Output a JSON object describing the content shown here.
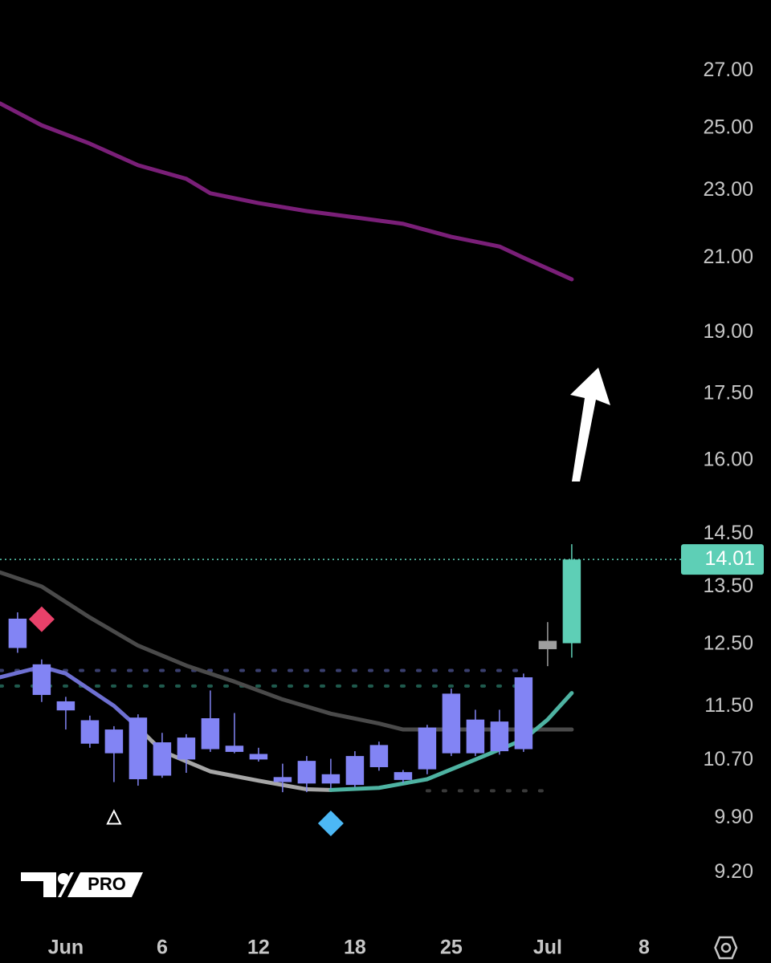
{
  "chart_data": {
    "type": "candlestick",
    "log_scale": true,
    "ylim": [
      8.6,
      29.7
    ],
    "xlim": [
      -0.73,
      27.27
    ],
    "yticks": [
      {
        "value": 27,
        "label": "27.00"
      },
      {
        "value": 25,
        "label": "25.00"
      },
      {
        "value": 23,
        "label": "23.00"
      },
      {
        "value": 21,
        "label": "21.00"
      },
      {
        "value": 19,
        "label": "19.00"
      },
      {
        "value": 17.5,
        "label": "17.50"
      },
      {
        "value": 16,
        "label": "16.00"
      },
      {
        "value": 14.5,
        "label": "14.50"
      },
      {
        "value": 13.5,
        "label": "13.50"
      },
      {
        "value": 12.5,
        "label": "12.50"
      },
      {
        "value": 11.5,
        "label": "11.50"
      },
      {
        "value": 10.7,
        "label": "10.70"
      },
      {
        "value": 9.9,
        "label": "9.90"
      },
      {
        "value": 9.2,
        "label": "9.20"
      }
    ],
    "xticks": [
      {
        "value": 2,
        "label": "Jun"
      },
      {
        "value": 6,
        "label": "6"
      },
      {
        "value": 10,
        "label": "12"
      },
      {
        "value": 14,
        "label": "18"
      },
      {
        "value": 18,
        "label": "25"
      },
      {
        "value": 22,
        "label": "Jul"
      },
      {
        "value": 26,
        "label": "8"
      }
    ],
    "candles": [
      {
        "x": 0,
        "open": 12.94,
        "high": 13.05,
        "low": 12.36,
        "close": 12.44,
        "color": "#8284f4"
      },
      {
        "x": 1,
        "open": 12.17,
        "high": 12.25,
        "low": 11.57,
        "close": 11.68,
        "color": "#8284f4"
      },
      {
        "x": 2,
        "open": 11.58,
        "high": 11.65,
        "low": 11.15,
        "close": 11.44,
        "color": "#8284f4"
      },
      {
        "x": 3,
        "open": 11.29,
        "high": 11.36,
        "low": 10.88,
        "close": 10.94,
        "color": "#8284f4"
      },
      {
        "x": 4,
        "open": 11.15,
        "high": 11.2,
        "low": 10.39,
        "close": 10.8,
        "color": "#8284f4"
      },
      {
        "x": 5,
        "open": 11.33,
        "high": 11.38,
        "low": 10.34,
        "close": 10.43,
        "color": "#8284f4"
      },
      {
        "x": 6,
        "open": 10.96,
        "high": 11.1,
        "low": 10.45,
        "close": 10.48,
        "color": "#8284f4"
      },
      {
        "x": 7,
        "open": 11.03,
        "high": 11.08,
        "low": 10.52,
        "close": 10.71,
        "color": "#8284f4"
      },
      {
        "x": 8,
        "open": 11.32,
        "high": 11.75,
        "low": 10.82,
        "close": 10.86,
        "color": "#8284f4"
      },
      {
        "x": 9,
        "open": 10.91,
        "high": 11.4,
        "low": 10.8,
        "close": 10.82,
        "color": "#8284f4"
      },
      {
        "x": 10,
        "open": 10.79,
        "high": 10.88,
        "low": 10.68,
        "close": 10.71,
        "color": "#8284f4"
      },
      {
        "x": 11,
        "open": 10.46,
        "high": 10.65,
        "low": 10.25,
        "close": 10.39,
        "color": "#8284f4"
      },
      {
        "x": 12,
        "open": 10.69,
        "high": 10.76,
        "low": 10.25,
        "close": 10.37,
        "color": "#8284f4"
      },
      {
        "x": 13,
        "open": 10.5,
        "high": 10.72,
        "low": 10.3,
        "close": 10.37,
        "color": "#8284f4"
      },
      {
        "x": 14,
        "open": 10.76,
        "high": 10.83,
        "low": 10.32,
        "close": 10.35,
        "color": "#8284f4"
      },
      {
        "x": 15,
        "open": 10.92,
        "high": 10.97,
        "low": 10.55,
        "close": 10.6,
        "color": "#8284f4"
      },
      {
        "x": 16,
        "open": 10.53,
        "high": 10.56,
        "low": 10.38,
        "close": 10.42,
        "color": "#8284f4"
      },
      {
        "x": 17,
        "open": 11.18,
        "high": 11.22,
        "low": 10.5,
        "close": 10.57,
        "color": "#8284f4"
      },
      {
        "x": 18,
        "open": 11.7,
        "high": 11.78,
        "low": 10.76,
        "close": 10.8,
        "color": "#8284f4"
      },
      {
        "x": 19,
        "open": 11.3,
        "high": 11.45,
        "low": 10.76,
        "close": 10.8,
        "color": "#8284f4"
      },
      {
        "x": 20,
        "open": 11.27,
        "high": 11.45,
        "low": 10.78,
        "close": 10.83,
        "color": "#8284f4"
      },
      {
        "x": 21,
        "open": 11.96,
        "high": 12.02,
        "low": 10.82,
        "close": 10.86,
        "color": "#8284f4"
      },
      {
        "x": 22,
        "open": 12.42,
        "high": 12.88,
        "low": 12.14,
        "close": 12.56,
        "color": "#9e9e9e"
      },
      {
        "x": 23,
        "open": 12.52,
        "high": 14.3,
        "low": 12.28,
        "close": 14.01,
        "color": "#5ecfb6"
      }
    ],
    "lines": [
      {
        "color": "#7a1f78",
        "x": [
          -0.73,
          1,
          3,
          5,
          7,
          8,
          10,
          12,
          14,
          16,
          18,
          20,
          21,
          23
        ],
        "values": [
          25.85,
          25.1,
          24.49,
          23.79,
          23.36,
          22.91,
          22.61,
          22.37,
          22.18,
          21.99,
          21.61,
          21.33,
          21.01,
          20.41
        ]
      },
      {
        "color": "#4a4a4a",
        "x": [
          -0.73,
          1,
          3,
          5,
          7,
          9,
          11,
          13,
          15,
          16,
          18,
          20,
          23
        ],
        "values": [
          13.77,
          13.51,
          12.96,
          12.48,
          12.15,
          11.89,
          11.61,
          11.39,
          11.24,
          11.15,
          11.15,
          11.15,
          11.15
        ]
      },
      {
        "color": "#6e70d2",
        "x": [
          -0.73,
          1,
          2,
          4,
          5
        ],
        "values": [
          11.96,
          12.13,
          12.02,
          11.51,
          11.18
        ]
      },
      {
        "color": "#a6a6a6",
        "x": [
          5,
          6,
          8,
          10,
          12,
          13
        ],
        "values": [
          11.18,
          10.83,
          10.54,
          10.41,
          10.29,
          10.28
        ]
      },
      {
        "color": "#4eb3a2",
        "x": [
          13,
          15,
          17,
          19,
          21,
          22,
          23
        ],
        "values": [
          10.28,
          10.31,
          10.43,
          10.71,
          11.0,
          11.3,
          11.71
        ]
      }
    ],
    "levels": [
      {
        "value": 12.07,
        "from": -0.73,
        "to": 21,
        "color": "#3a3f6e"
      },
      {
        "value": 11.82,
        "from": -0.73,
        "to": 21,
        "color": "#1f5a4d"
      },
      {
        "value": 10.27,
        "from": 17,
        "to": 22,
        "color": "#3a3a3a"
      }
    ],
    "markers": [
      {
        "shape": "diamond",
        "x": 1,
        "value": 12.93,
        "color": "#e8416a"
      },
      {
        "shape": "triangle",
        "x": 4,
        "value": 9.91,
        "color": "#ffffff"
      },
      {
        "shape": "diamond",
        "x": 13,
        "value": 9.83,
        "color": "#4cb8f5"
      }
    ],
    "last_price": 14.01,
    "last_price_color": "#5ecfb6",
    "logo_text": "PRO"
  }
}
